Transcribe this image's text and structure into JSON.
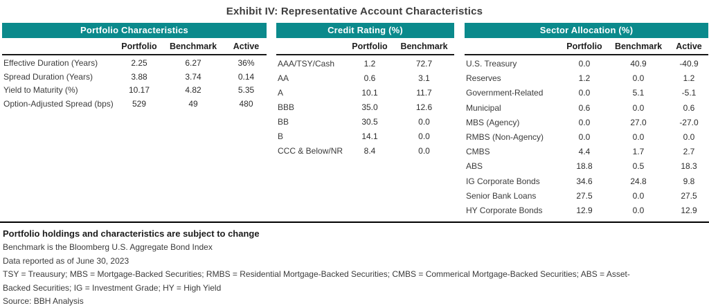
{
  "title": "Exhibit IV: Representative Account Characteristics",
  "colors": {
    "header_teal": "#0b8a8c",
    "header_text": "#ffffff",
    "rule_black": "#000000"
  },
  "tables": [
    {
      "title": "Portfolio Characteristics",
      "columns": [
        "Portfolio",
        "Benchmark",
        "Active"
      ],
      "rows": [
        {
          "label": "Effective Duration (Years)",
          "values": [
            "2.25",
            "6.27",
            "36%"
          ]
        },
        {
          "label": "Spread Duration (Years)",
          "values": [
            "3.88",
            "3.74",
            "0.14"
          ]
        },
        {
          "label": "Yield to Maturity (%)",
          "values": [
            "10.17",
            "4.82",
            "5.35"
          ]
        },
        {
          "label": "Option-Adjusted Spread (bps)",
          "values": [
            "529",
            "49",
            "480"
          ]
        }
      ]
    },
    {
      "title": "Credit Rating (%)",
      "columns": [
        "Portfolio",
        "Benchmark"
      ],
      "rows": [
        {
          "label": "AAA/TSY/Cash",
          "values": [
            "1.2",
            "72.7"
          ]
        },
        {
          "label": "AA",
          "values": [
            "0.6",
            "3.1"
          ]
        },
        {
          "label": "A",
          "values": [
            "10.1",
            "11.7"
          ]
        },
        {
          "label": "BBB",
          "values": [
            "35.0",
            "12.6"
          ]
        },
        {
          "label": "BB",
          "values": [
            "30.5",
            "0.0"
          ]
        },
        {
          "label": "B",
          "values": [
            "14.1",
            "0.0"
          ]
        },
        {
          "label": "CCC & Below/NR",
          "values": [
            "8.4",
            "0.0"
          ]
        }
      ]
    },
    {
      "title": "Sector Allocation (%)",
      "columns": [
        "Portfolio",
        "Benchmark",
        "Active"
      ],
      "rows": [
        {
          "label": "U.S. Treasury",
          "values": [
            "0.0",
            "40.9",
            "-40.9"
          ]
        },
        {
          "label": "Reserves",
          "values": [
            "1.2",
            "0.0",
            "1.2"
          ]
        },
        {
          "label": "Government-Related",
          "values": [
            "0.0",
            "5.1",
            "-5.1"
          ]
        },
        {
          "label": "Municipal",
          "values": [
            "0.6",
            "0.0",
            "0.6"
          ]
        },
        {
          "label": "MBS (Agency)",
          "values": [
            "0.0",
            "27.0",
            "-27.0"
          ]
        },
        {
          "label": "RMBS (Non-Agency)",
          "values": [
            "0.0",
            "0.0",
            "0.0"
          ]
        },
        {
          "label": "CMBS",
          "values": [
            "4.4",
            "1.7",
            "2.7"
          ]
        },
        {
          "label": "ABS",
          "values": [
            "18.8",
            "0.5",
            "18.3"
          ]
        },
        {
          "label": "IG Corporate Bonds",
          "values": [
            "34.6",
            "24.8",
            "9.8"
          ]
        },
        {
          "label": "Senior Bank Loans",
          "values": [
            "27.5",
            "0.0",
            "27.5"
          ]
        },
        {
          "label": "HY Corporate Bonds",
          "values": [
            "12.9",
            "0.0",
            "12.9"
          ]
        }
      ]
    }
  ],
  "footnotes": {
    "bold": "Portfolio holdings and characteristics are subject to change",
    "lines": [
      "Benchmark is the Bloomberg U.S. Aggregate Bond Index",
      "Data reported as of June 30, 2023",
      "TSY = Treausury; MBS = Mortgage-Backed Securities; RMBS = Residential Mortgage-Backed Securities; CMBS = Commerical Mortgage-Backed Securities; ABS = Asset-Backed Securities; IG = Investment Grade; HY = High Yield",
      "Source: BBH Analysis"
    ]
  }
}
